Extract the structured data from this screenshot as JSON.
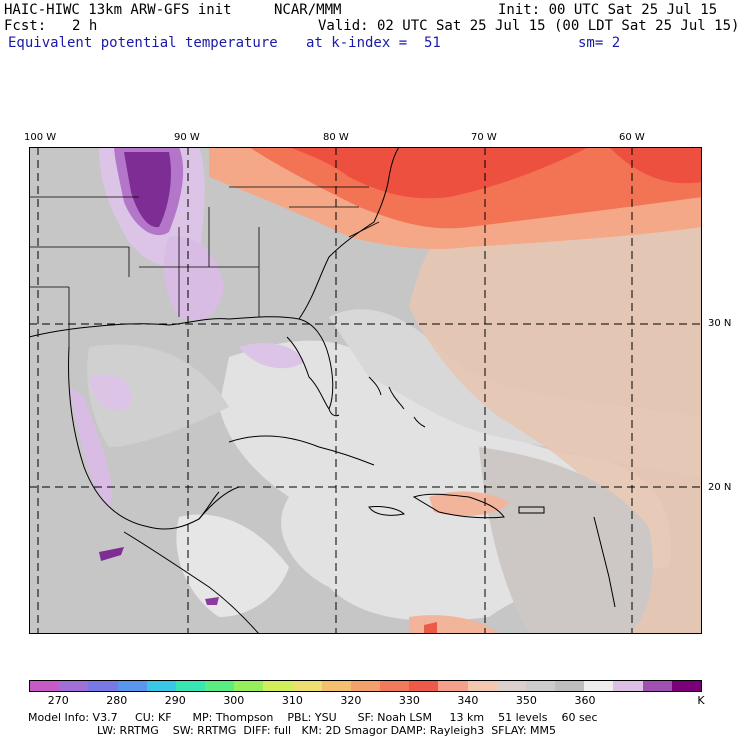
{
  "header": {
    "model_title": "HAIC-HIWC 13km ARW-GFS init",
    "org": "NCAR/MMM",
    "init": "Init: 00 UTC Sat 25 Jul 15",
    "fcst_label": "Fcst:",
    "fcst_value": "2 h",
    "valid": "Valid: 02 UTC Sat 25 Jul 15 (00 LDT Sat 25 Jul 15)",
    "field": "Equivalent potential temperature",
    "level": "at k-index =  51",
    "smoothing": "sm= 2"
  },
  "map": {
    "lon_labels": [
      "100 W",
      "90 W",
      "80 W",
      "70 W",
      "60 W"
    ],
    "lat_labels": [
      "30 N",
      "20 N"
    ],
    "colors": {
      "grey_dark": "#c0c0c0",
      "grey_mid": "#d6d6d6",
      "white_ish": "#ededed",
      "peach": "#f2c9ad",
      "salmon": "#f4a07a",
      "orange_red": "#f26a4a",
      "red": "#ee4a3a",
      "lavender": "#dcc4e6",
      "violet": "#b476c8",
      "purple": "#7e2d94"
    }
  },
  "colorbar": {
    "colors": [
      "#c85ac8",
      "#a070d8",
      "#7878e6",
      "#5a96ee",
      "#38c8e6",
      "#3ae6b4",
      "#5aee82",
      "#96ee5a",
      "#d2ee5a",
      "#eee070",
      "#f4c070",
      "#f4a06a",
      "#f27a5a",
      "#ee5a4a",
      "#f4a08a",
      "#f2c8b0",
      "#dcd0cc",
      "#cccccc",
      "#bebebe",
      "#eeeeee",
      "#dcc0e6",
      "#a050b0",
      "#7a007a"
    ],
    "ticks": [
      "270",
      "280",
      "290",
      "300",
      "310",
      "320",
      "330",
      "340",
      "350",
      "360"
    ],
    "unit": "K"
  },
  "footer": {
    "line1": "Model Info: V3.7     CU: KF      MP: Thompson    PBL: YSU      SF: Noah LSM     13 km    51 levels    60 sec",
    "line2": "LW: RRTMG    SW: RRTMG  DIFF: full   KM: 2D Smagor DAMP: Rayleigh3  SFLAY: MM5"
  }
}
